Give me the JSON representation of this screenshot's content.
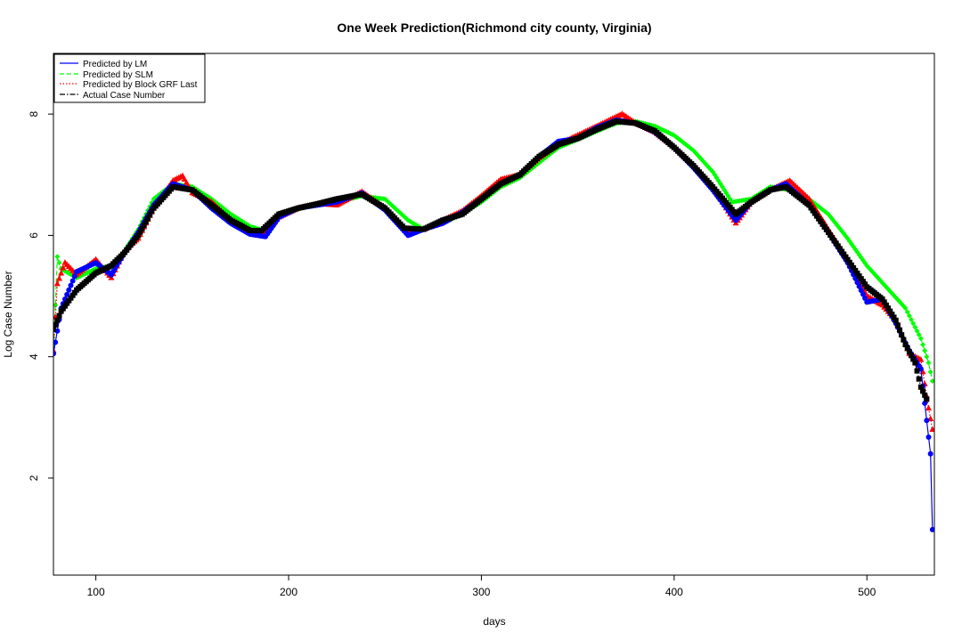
{
  "chart_data": {
    "type": "line",
    "title": "One Week Prediction(Richmond city county, Virginia)",
    "xlabel": "days",
    "ylabel": "Log Case Number",
    "xlim": [
      78,
      535
    ],
    "ylim": [
      0.4,
      9.0
    ],
    "xticks": [
      100,
      200,
      300,
      400,
      500
    ],
    "yticks": [
      2,
      4,
      6,
      8
    ],
    "grid": false,
    "legend_position": "top-left",
    "legend": [
      {
        "name": "Predicted by LM",
        "color": "#0000ff",
        "style": "solid"
      },
      {
        "name": "Predicted by SLM",
        "color": "#00ff00",
        "style": "dashed"
      },
      {
        "name": "Predicted by Block GRF Last",
        "color": "#ff0000",
        "style": "dotted"
      },
      {
        "name": "Actual Case Number",
        "color": "#000000",
        "style": "dashdot"
      }
    ],
    "series": [
      {
        "name": "Actual Case Number",
        "color": "#000000",
        "marker": "square",
        "x": [
          78,
          82,
          90,
          100,
          108,
          115,
          122,
          130,
          140,
          150,
          160,
          170,
          180,
          186,
          195,
          205,
          215,
          225,
          238,
          250,
          260,
          270,
          280,
          290,
          300,
          310,
          320,
          330,
          340,
          350,
          360,
          370,
          380,
          390,
          400,
          410,
          420,
          432,
          440,
          450,
          458,
          470,
          480,
          490,
          500,
          508,
          515,
          520,
          525,
          528,
          531
        ],
        "values": [
          4.45,
          4.75,
          5.1,
          5.38,
          5.5,
          5.72,
          6.0,
          6.45,
          6.8,
          6.75,
          6.5,
          6.25,
          6.08,
          6.08,
          6.35,
          6.45,
          6.52,
          6.6,
          6.68,
          6.45,
          6.12,
          6.1,
          6.25,
          6.35,
          6.6,
          6.85,
          7.0,
          7.3,
          7.5,
          7.6,
          7.75,
          7.88,
          7.85,
          7.72,
          7.45,
          7.15,
          6.8,
          6.35,
          6.55,
          6.75,
          6.8,
          6.5,
          6.05,
          5.6,
          5.15,
          4.95,
          4.6,
          4.2,
          3.9,
          3.5,
          3.3
        ]
      },
      {
        "name": "Predicted by LM",
        "color": "#0000ff",
        "marker": "circle",
        "x": [
          78,
          82,
          90,
          100,
          108,
          115,
          122,
          130,
          140,
          150,
          160,
          170,
          180,
          188,
          195,
          205,
          215,
          225,
          238,
          250,
          262,
          270,
          280,
          290,
          300,
          310,
          320,
          330,
          340,
          350,
          360,
          370,
          380,
          390,
          400,
          410,
          420,
          432,
          440,
          450,
          458,
          470,
          480,
          490,
          500,
          508,
          515,
          522,
          528,
          531,
          533,
          534
        ],
        "values": [
          4.05,
          4.8,
          5.4,
          5.55,
          5.35,
          5.72,
          6.05,
          6.5,
          6.85,
          6.75,
          6.45,
          6.2,
          6.02,
          5.98,
          6.3,
          6.45,
          6.5,
          6.55,
          6.7,
          6.42,
          6.0,
          6.1,
          6.2,
          6.38,
          6.6,
          6.85,
          7.0,
          7.3,
          7.55,
          7.6,
          7.78,
          7.9,
          7.85,
          7.7,
          7.45,
          7.12,
          6.75,
          6.25,
          6.55,
          6.75,
          6.85,
          6.5,
          6.05,
          5.55,
          4.9,
          4.95,
          4.55,
          4.1,
          3.8,
          2.95,
          2.4,
          1.15
        ]
      },
      {
        "name": "Predicted by SLM",
        "color": "#00ff00",
        "marker": "diamond",
        "x": [
          78,
          80,
          82,
          90,
          100,
          108,
          115,
          122,
          130,
          140,
          150,
          160,
          170,
          180,
          190,
          195,
          205,
          215,
          225,
          238,
          250,
          262,
          270,
          280,
          290,
          300,
          310,
          320,
          330,
          340,
          350,
          360,
          370,
          380,
          390,
          400,
          410,
          420,
          430,
          440,
          450,
          460,
          470,
          480,
          490,
          500,
          510,
          520,
          528,
          532,
          534
        ],
        "values": [
          4.05,
          5.65,
          5.45,
          5.3,
          5.45,
          5.5,
          5.75,
          6.1,
          6.6,
          6.85,
          6.8,
          6.6,
          6.35,
          6.15,
          6.05,
          6.3,
          6.45,
          6.5,
          6.55,
          6.65,
          6.6,
          6.25,
          6.1,
          6.2,
          6.35,
          6.55,
          6.8,
          6.95,
          7.2,
          7.45,
          7.58,
          7.72,
          7.85,
          7.88,
          7.8,
          7.65,
          7.4,
          7.05,
          6.55,
          6.6,
          6.8,
          6.75,
          6.6,
          6.35,
          5.95,
          5.5,
          5.15,
          4.8,
          4.3,
          3.9,
          3.6
        ]
      },
      {
        "name": "Predicted by Block GRF Last",
        "color": "#ff0000",
        "marker": "triangle",
        "x": [
          78,
          80,
          84,
          90,
          100,
          108,
          115,
          122,
          130,
          140,
          145,
          150,
          160,
          170,
          180,
          188,
          195,
          205,
          215,
          225,
          238,
          250,
          262,
          270,
          280,
          290,
          300,
          310,
          320,
          330,
          340,
          350,
          360,
          373,
          380,
          390,
          400,
          410,
          420,
          432,
          440,
          450,
          460,
          470,
          480,
          490,
          500,
          508,
          515,
          522,
          528,
          532,
          534
        ],
        "values": [
          4.1,
          5.2,
          5.55,
          5.35,
          5.6,
          5.3,
          5.75,
          5.95,
          6.45,
          6.9,
          6.98,
          6.7,
          6.55,
          6.25,
          6.05,
          6.05,
          6.3,
          6.45,
          6.52,
          6.5,
          6.72,
          6.45,
          6.05,
          6.1,
          6.25,
          6.4,
          6.65,
          6.92,
          7.0,
          7.28,
          7.5,
          7.65,
          7.8,
          8.0,
          7.85,
          7.7,
          7.45,
          7.15,
          6.8,
          6.2,
          6.55,
          6.75,
          6.9,
          6.6,
          6.1,
          5.6,
          5.0,
          4.85,
          4.6,
          4.05,
          3.95,
          3.15,
          2.8
        ]
      }
    ]
  }
}
